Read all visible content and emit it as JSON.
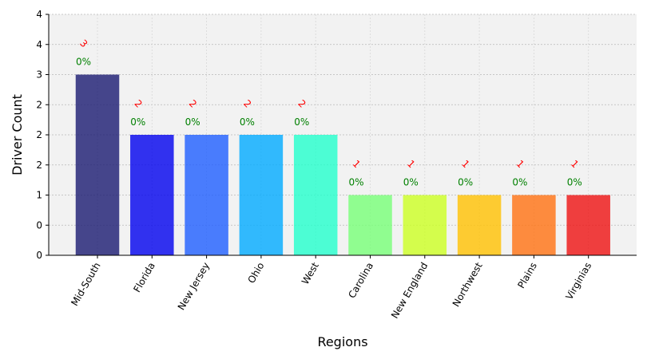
{
  "chart_data": {
    "type": "bar",
    "title": "",
    "xlabel": "Regions",
    "ylabel": "Driver Count",
    "categories": [
      "Mid-South",
      "Florida",
      "New Jersey",
      "Ohio",
      "West",
      "Carolina",
      "New England",
      "Northwest",
      "Plains",
      "Virginias"
    ],
    "values": [
      3,
      2,
      2,
      2,
      2,
      1,
      1,
      1,
      1,
      1
    ],
    "value_labels": [
      "3",
      "2",
      "2",
      "2",
      "2",
      "1",
      "1",
      "1",
      "1",
      "1"
    ],
    "percent_labels": [
      "0%",
      "0%",
      "0%",
      "0%",
      "0%",
      "0%",
      "0%",
      "0%",
      "0%",
      "0%"
    ],
    "y_ticks": [
      0,
      0.5,
      1,
      1.5,
      2,
      2.5,
      3,
      3.5,
      4
    ],
    "y_tick_labels": [
      "0",
      "0",
      "1",
      "2",
      "2",
      "2",
      "3",
      "4",
      "4"
    ],
    "ylim": [
      0,
      4
    ],
    "grid": true,
    "colors": [
      "#191970",
      "#0000ee",
      "#1e5eff",
      "#00aaff",
      "#22ffcc",
      "#77ff77",
      "#ccff22",
      "#ffc000",
      "#ff7010",
      "#ee1010"
    ],
    "bar_opacity": 0.8,
    "plot_background": "#f2f2f2",
    "value_label_color": "#ff0000",
    "percent_label_color": "#008000"
  }
}
